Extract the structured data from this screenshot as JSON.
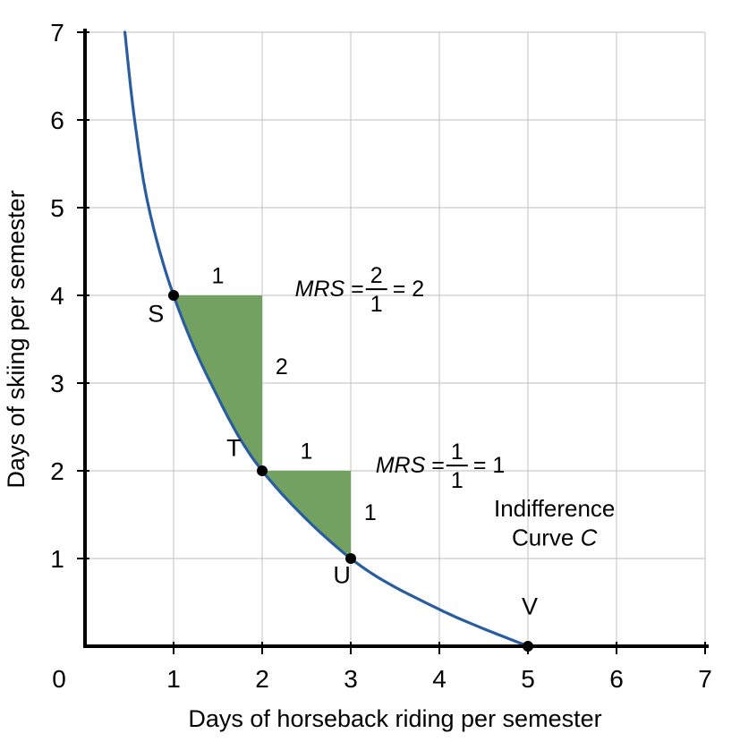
{
  "chart_data": {
    "type": "line",
    "title": "",
    "xlabel": "Days of horseback riding per semester",
    "ylabel": "Days of skiing per semester",
    "xlim": [
      0,
      7
    ],
    "ylim": [
      0,
      7
    ],
    "grid": true,
    "legend": "none",
    "origin_label": "0",
    "xticks": [
      "1",
      "2",
      "3",
      "4",
      "5",
      "6",
      "7"
    ],
    "yticks": [
      "1",
      "2",
      "3",
      "4",
      "5",
      "6",
      "7"
    ],
    "colors": {
      "curve": "#2a5d9f",
      "triangle": "#72a161",
      "grid": "#c8cbce",
      "axis": "#000000",
      "point": "#000000",
      "text": "#000000"
    },
    "curve": {
      "name": "Indifference Curve C",
      "points": [
        [
          0.45,
          7
        ],
        [
          0.56,
          6
        ],
        [
          0.72,
          5
        ],
        [
          1,
          4
        ],
        [
          1.42,
          3
        ],
        [
          2,
          2
        ],
        [
          3,
          1
        ],
        [
          4,
          0.42
        ],
        [
          5,
          0
        ]
      ]
    },
    "marked_points": [
      {
        "label": "S",
        "x": 1,
        "y": 4,
        "label_x": 0.8,
        "label_y": 3.7
      },
      {
        "label": "T",
        "x": 2,
        "y": 2,
        "label_x": 1.68,
        "label_y": 2.17
      },
      {
        "label": "U",
        "x": 3,
        "y": 1,
        "label_x": 2.9,
        "label_y": 0.72
      },
      {
        "label": "V",
        "x": 5,
        "y": 0,
        "label_x": 5.02,
        "label_y": 0.36
      }
    ],
    "triangles": [
      {
        "start": {
          "x": 1,
          "y": 4
        },
        "corner": {
          "x": 2,
          "y": 4
        },
        "end": {
          "x": 2,
          "y": 2
        },
        "run_label": "1",
        "run_label_pos": [
          1.5,
          4.14
        ],
        "rise_label": "2",
        "rise_label_pos": [
          2.15,
          3.1
        ]
      },
      {
        "start": {
          "x": 2,
          "y": 2
        },
        "corner": {
          "x": 3,
          "y": 2
        },
        "end": {
          "x": 3,
          "y": 1
        },
        "run_label": "1",
        "run_label_pos": [
          2.5,
          2.14
        ],
        "rise_label": "1",
        "rise_label_pos": [
          3.15,
          1.44
        ]
      }
    ],
    "mrs_annotations": [
      {
        "label": "MRS",
        "numerator": "2",
        "denominator": "1",
        "result": "2",
        "x": 2.37,
        "y": 4.08
      },
      {
        "label": "MRS",
        "numerator": "1",
        "denominator": "1",
        "result": "1",
        "x": 3.28,
        "y": 2.07
      }
    ],
    "curve_label": {
      "line1": "Indifference",
      "line2": "Curve",
      "line2_italic": "C",
      "x": 5.3,
      "y1": 1.48,
      "y2": 1.15
    }
  }
}
